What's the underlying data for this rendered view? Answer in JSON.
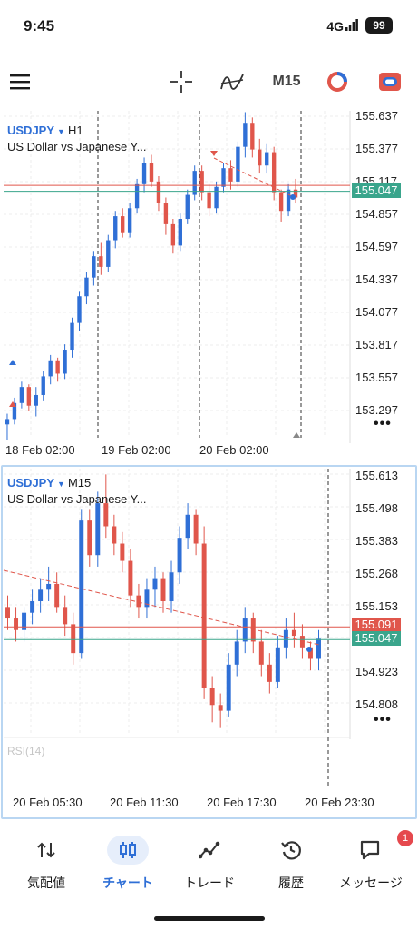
{
  "status_bar": {
    "time": "9:45",
    "network": "4G",
    "battery": "99"
  },
  "toolbar": {
    "menu_icon": "hamburger-icon",
    "crosshair_icon": "crosshair-icon",
    "indicators_icon": "indicator-icon",
    "timeframe": "M15",
    "chart_type_icon": "donut-icon",
    "trade_icon": "toggle-icon"
  },
  "chart_top": {
    "symbol": "USDJPY",
    "timeframe": "H1",
    "description": "US Dollar vs Japanese Y...",
    "price_labels": [
      "155.637",
      "155.377",
      "155.117",
      "154.857",
      "154.597",
      "154.337",
      "154.077",
      "153.817",
      "153.557",
      "153.297"
    ],
    "bid_tag": "155.047",
    "time_labels": [
      "18 Feb 02:00",
      "19 Feb 02:00",
      "20 Feb 02:00"
    ]
  },
  "chart_bottom": {
    "symbol": "USDJPY",
    "timeframe": "M15",
    "description": "US Dollar vs Japanese Y...",
    "price_labels": [
      "155.613",
      "155.498",
      "155.383",
      "155.268",
      "155.153",
      "154.923",
      "154.808"
    ],
    "ask_tag": "155.091",
    "bid_tag": "155.047",
    "indicator_label": "RSI(14)",
    "time_labels": [
      "20 Feb 05:30",
      "20 Feb 11:30",
      "20 Feb 17:30",
      "20 Feb 23:30"
    ]
  },
  "chart_data": [
    {
      "type": "candlestick",
      "title": "USDJPY, H1",
      "x_ticks": [
        "18 Feb 02:00",
        "19 Feb 02:00",
        "20 Feb 02:00"
      ],
      "ylim": [
        153.2,
        155.65
      ],
      "ask": 155.091,
      "bid": 155.047,
      "series": [
        {
          "name": "USDJPY",
          "ohlc": [
            [
              153.3,
              153.38,
              153.18,
              153.34
            ],
            [
              153.34,
              153.5,
              153.3,
              153.46
            ],
            [
              153.46,
              153.62,
              153.42,
              153.58
            ],
            [
              153.58,
              153.6,
              153.4,
              153.44
            ],
            [
              153.44,
              153.58,
              153.36,
              153.52
            ],
            [
              153.52,
              153.7,
              153.48,
              153.66
            ],
            [
              153.66,
              153.82,
              153.6,
              153.78
            ],
            [
              153.78,
              153.8,
              153.62,
              153.68
            ],
            [
              153.68,
              153.9,
              153.64,
              153.86
            ],
            [
              153.86,
              154.1,
              153.8,
              154.06
            ],
            [
              154.06,
              154.3,
              154.0,
              154.26
            ],
            [
              154.26,
              154.44,
              154.2,
              154.4
            ],
            [
              154.4,
              154.6,
              154.34,
              154.56
            ],
            [
              154.56,
              154.66,
              154.42,
              154.48
            ],
            [
              154.48,
              154.72,
              154.44,
              154.68
            ],
            [
              154.68,
              154.9,
              154.62,
              154.86
            ],
            [
              154.86,
              154.92,
              154.7,
              154.74
            ],
            [
              154.74,
              154.96,
              154.7,
              154.92
            ],
            [
              154.92,
              155.14,
              154.88,
              155.1
            ],
            [
              155.1,
              155.3,
              155.04,
              155.26
            ],
            [
              155.26,
              155.32,
              155.08,
              155.12
            ],
            [
              155.12,
              155.16,
              154.9,
              154.96
            ],
            [
              154.96,
              155.0,
              154.72,
              154.8
            ],
            [
              154.8,
              154.84,
              154.58,
              154.64
            ],
            [
              154.64,
              154.88,
              154.6,
              154.84
            ],
            [
              154.84,
              155.06,
              154.8,
              155.02
            ],
            [
              155.02,
              155.24,
              154.98,
              155.2
            ],
            [
              155.2,
              155.24,
              154.98,
              155.04
            ],
            [
              155.04,
              155.1,
              154.86,
              154.92
            ],
            [
              154.92,
              155.12,
              154.88,
              155.08
            ],
            [
              155.08,
              155.26,
              155.04,
              155.22
            ],
            [
              155.22,
              155.28,
              155.06,
              155.12
            ],
            [
              155.12,
              155.42,
              155.08,
              155.38
            ],
            [
              155.38,
              155.64,
              155.3,
              155.56
            ],
            [
              155.56,
              155.6,
              155.3,
              155.36
            ],
            [
              155.36,
              155.44,
              155.18,
              155.24
            ],
            [
              155.24,
              155.4,
              155.18,
              155.34
            ],
            [
              155.34,
              155.38,
              154.98,
              155.04
            ],
            [
              155.04,
              155.06,
              154.82,
              154.9
            ],
            [
              154.9,
              155.1,
              154.86,
              155.06
            ],
            [
              155.06,
              155.14,
              154.96,
              155.0
            ]
          ]
        }
      ]
    },
    {
      "type": "candlestick",
      "title": "USDJPY, M15",
      "x_ticks": [
        "20 Feb 05:30",
        "20 Feb 11:30",
        "20 Feb 17:30",
        "20 Feb 23:30"
      ],
      "ylim": [
        154.72,
        155.64
      ],
      "ask": 155.091,
      "bid": 155.047,
      "series": [
        {
          "name": "USDJPY",
          "ohlc": [
            [
              155.16,
              155.2,
              155.08,
              155.12
            ],
            [
              155.12,
              155.16,
              155.04,
              155.08
            ],
            [
              155.08,
              155.16,
              155.04,
              155.14
            ],
            [
              155.14,
              155.22,
              155.1,
              155.18
            ],
            [
              155.18,
              155.26,
              155.14,
              155.22
            ],
            [
              155.22,
              155.3,
              155.18,
              155.24
            ],
            [
              155.24,
              155.28,
              155.14,
              155.16
            ],
            [
              155.16,
              155.2,
              155.06,
              155.1
            ],
            [
              155.1,
              155.14,
              154.96,
              155.0
            ],
            [
              155.0,
              155.5,
              154.98,
              155.46
            ],
            [
              155.46,
              155.5,
              155.3,
              155.34
            ],
            [
              155.34,
              155.56,
              155.3,
              155.52
            ],
            [
              155.52,
              155.62,
              155.4,
              155.44
            ],
            [
              155.44,
              155.48,
              155.34,
              155.38
            ],
            [
              155.38,
              155.42,
              155.28,
              155.32
            ],
            [
              155.32,
              155.36,
              155.16,
              155.2
            ],
            [
              155.2,
              155.24,
              155.12,
              155.16
            ],
            [
              155.16,
              155.26,
              155.12,
              155.22
            ],
            [
              155.22,
              155.3,
              155.16,
              155.26
            ],
            [
              155.26,
              155.28,
              155.14,
              155.18
            ],
            [
              155.18,
              155.32,
              155.14,
              155.28
            ],
            [
              155.28,
              155.44,
              155.24,
              155.4
            ],
            [
              155.4,
              155.52,
              155.36,
              155.48
            ],
            [
              155.48,
              155.5,
              155.34,
              155.38
            ],
            [
              155.38,
              155.44,
              154.84,
              154.88
            ],
            [
              154.88,
              154.92,
              154.76,
              154.82
            ],
            [
              154.82,
              154.86,
              154.74,
              154.8
            ],
            [
              154.8,
              155.0,
              154.78,
              154.96
            ],
            [
              154.96,
              155.08,
              154.92,
              155.04
            ],
            [
              155.04,
              155.16,
              155.0,
              155.12
            ],
            [
              155.12,
              155.14,
              155.0,
              155.04
            ],
            [
              155.04,
              155.08,
              154.92,
              154.96
            ],
            [
              154.96,
              155.0,
              154.86,
              154.9
            ],
            [
              154.9,
              155.06,
              154.88,
              155.02
            ],
            [
              155.02,
              155.12,
              154.98,
              155.08
            ],
            [
              155.08,
              155.14,
              155.02,
              155.06
            ],
            [
              155.06,
              155.1,
              154.98,
              155.02
            ],
            [
              155.02,
              155.04,
              154.94,
              154.98
            ],
            [
              154.98,
              155.08,
              154.94,
              155.05
            ]
          ]
        }
      ]
    }
  ],
  "bottom_nav": {
    "items": [
      {
        "label": "気配値",
        "icon": "quotes-icon"
      },
      {
        "label": "チャート",
        "icon": "chart-icon"
      },
      {
        "label": "トレード",
        "icon": "trade-icon"
      },
      {
        "label": "履歴",
        "icon": "history-icon"
      },
      {
        "label": "メッセージ",
        "icon": "message-icon",
        "badge": "1"
      }
    ]
  },
  "colors": {
    "up": "#2f6fd6",
    "down": "#e0564b",
    "ask_line": "#e0564b",
    "bid_line": "#3aa58c",
    "accent": "#2f6fd6"
  }
}
